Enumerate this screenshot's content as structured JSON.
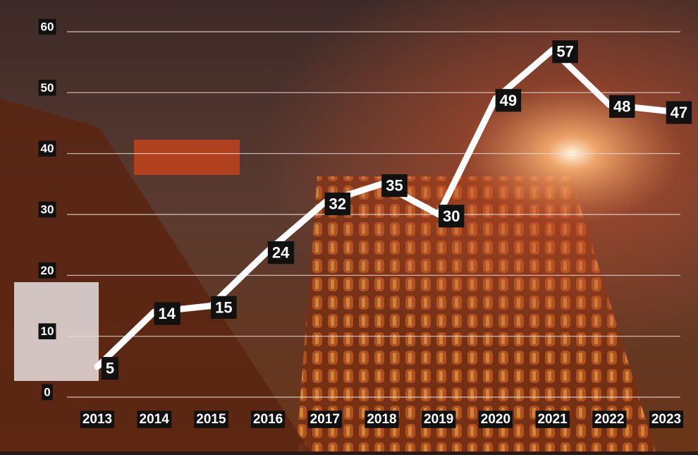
{
  "chart_data": {
    "type": "line",
    "categories": [
      "2013",
      "2014",
      "2015",
      "2016",
      "2017",
      "2018",
      "2019",
      "2020",
      "2021",
      "2022",
      "2023"
    ],
    "values": [
      5,
      14,
      15,
      24,
      32,
      35,
      30,
      49,
      57,
      48,
      47
    ],
    "color": "#ffffff",
    "ylim": [
      0,
      60
    ],
    "yticks": [
      0,
      10,
      20,
      30,
      40,
      50,
      60
    ],
    "grid": true
  }
}
